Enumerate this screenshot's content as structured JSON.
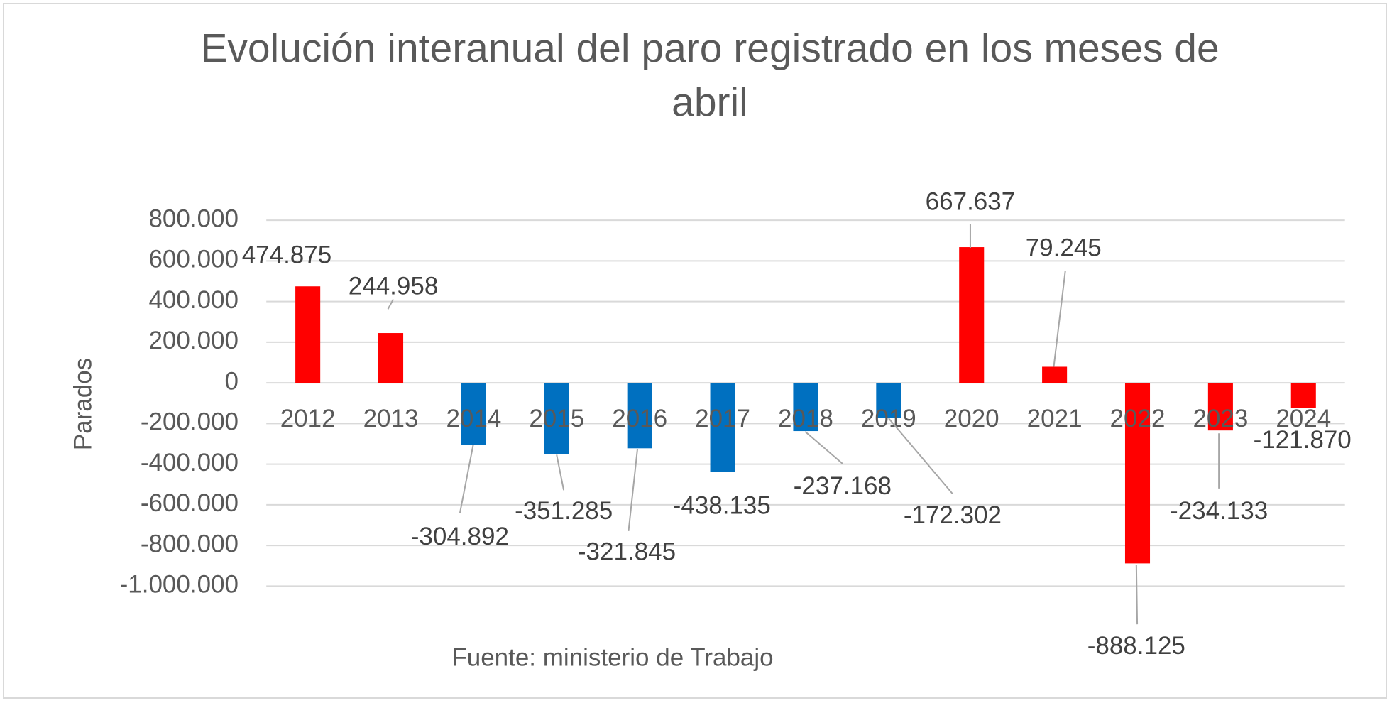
{
  "chart_data": {
    "type": "bar",
    "title": "Evolución interanual del paro registrado en los meses de abril",
    "y_label": "Parados",
    "source": "Fuente: ministerio de Trabajo",
    "categories": [
      "2012",
      "2013",
      "2014",
      "2015",
      "2016",
      "2017",
      "2018",
      "2019",
      "2020",
      "2021",
      "2022",
      "2023",
      "2024"
    ],
    "values": [
      474875,
      244958,
      -304892,
      -351285,
      -321845,
      -438135,
      -237168,
      -172302,
      667637,
      79245,
      -888125,
      -234133,
      -121870
    ],
    "value_labels": [
      "474.875",
      "244.958",
      "-304.892",
      "-351.285",
      "-321.845",
      "-438.135",
      "-237.168",
      "-172.302",
      "667.637",
      "79.245",
      "-888.125",
      "-234.133",
      "-121.870"
    ],
    "colors": [
      "#ff0000",
      "#ff0000",
      "#0070c0",
      "#0070c0",
      "#0070c0",
      "#0070c0",
      "#0070c0",
      "#0070c0",
      "#ff0000",
      "#ff0000",
      "#ff0000",
      "#ff0000",
      "#ff0000"
    ],
    "ylim": [
      -1000000,
      800000
    ],
    "yticks": [
      {
        "value": -1000000,
        "label": "-1.000.000"
      },
      {
        "value": -800000,
        "label": "-800.000"
      },
      {
        "value": -600000,
        "label": "-600.000"
      },
      {
        "value": -400000,
        "label": "-400.000"
      },
      {
        "value": -200000,
        "label": "-200.000"
      },
      0,
      {
        "value": 200000,
        "label": "200.000"
      },
      {
        "value": 400000,
        "label": "400.000"
      },
      {
        "value": 600000,
        "label": "600.000"
      },
      {
        "value": 800000,
        "label": "800.000"
      }
    ],
    "grid": true
  }
}
